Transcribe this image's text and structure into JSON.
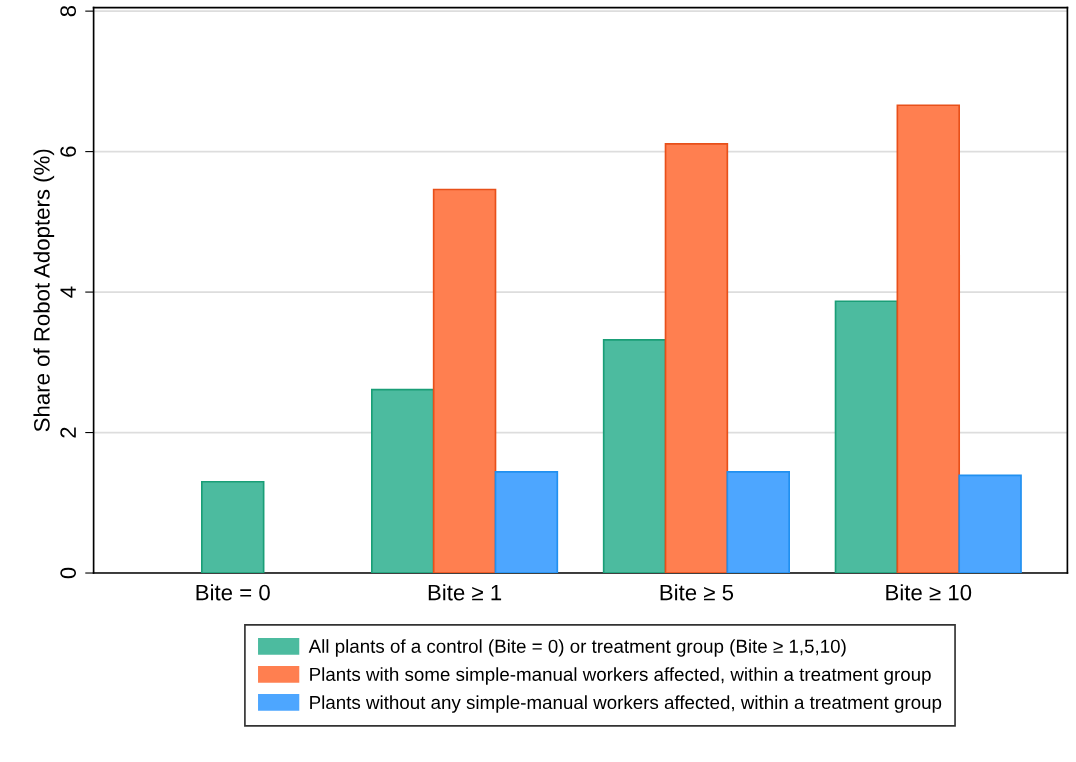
{
  "chart_data": {
    "type": "bar",
    "ylabel": "Share of Robot Adopters (%)",
    "categories": [
      "Bite = 0",
      "Bite ≥ 1",
      "Bite ≥ 5",
      "Bite ≥ 10"
    ],
    "series": [
      {
        "name": "All plants of a control (Bite = 0) or treatment group (Bite ≥ 1,5,10)",
        "color": "#4cbb9f",
        "values": [
          1.3,
          2.61,
          3.32,
          3.87
        ]
      },
      {
        "name": "Plants with some simple-manual workers affected, within a treatment group",
        "color": "#ff7f50",
        "values": [
          null,
          5.46,
          6.11,
          6.66
        ]
      },
      {
        "name": "Plants without any simple-manual workers affected, within a treatment group",
        "color": "#4da6ff",
        "values": [
          null,
          1.44,
          1.44,
          1.39
        ]
      }
    ],
    "ylim": [
      0,
      8.05
    ],
    "yticks": [
      0,
      2,
      4,
      6,
      8
    ],
    "grid": "y",
    "legend": "bottom"
  }
}
